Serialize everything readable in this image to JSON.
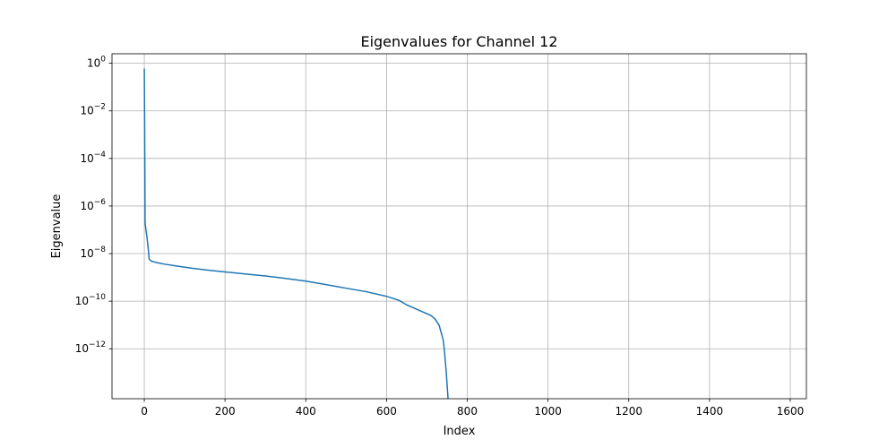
{
  "chart_data": {
    "type": "line",
    "title": "Eigenvalues for Channel 12",
    "xlabel": "Index",
    "ylabel": "Eigenvalue",
    "yscale": "log",
    "grid": true,
    "xlim": [
      -80,
      1640
    ],
    "ylim_exp": [
      -14.1,
      0.4
    ],
    "x_ticks": [
      0,
      200,
      400,
      600,
      800,
      1000,
      1200,
      1400,
      1600
    ],
    "y_ticks_exp": [
      0,
      -2,
      -4,
      -6,
      -8,
      -10,
      -12
    ],
    "y_tick_base": "10",
    "line_color": "#1f77b4",
    "series": [
      {
        "x": [
          0,
          1,
          2,
          4,
          6,
          8,
          10,
          12,
          14,
          16,
          20,
          30,
          50,
          80,
          120,
          160,
          200,
          250,
          300,
          350,
          400,
          450,
          500,
          550,
          600,
          630,
          650,
          670,
          690,
          710,
          720,
          730,
          735,
          740,
          743,
          745,
          748,
          750,
          752,
          753,
          754
        ],
        "y": [
          0.6,
          0.001,
          2e-07,
          1e-07,
          6e-08,
          3e-08,
          1.5e-08,
          6e-09,
          5.5e-09,
          5e-09,
          4.7e-09,
          4.2e-09,
          3.6e-09,
          3e-09,
          2.4e-09,
          2e-09,
          1.7e-09,
          1.4e-09,
          1.15e-09,
          9e-10,
          7e-10,
          5e-10,
          3.5e-10,
          2.5e-10,
          1.6e-10,
          1.1e-10,
          7e-11,
          5e-11,
          3.5e-11,
          2.5e-11,
          1.8e-11,
          1e-11,
          5e-12,
          2.5e-12,
          1e-12,
          4e-13,
          1e-13,
          3e-14,
          1e-14,
          3e-15,
          1e-16
        ]
      }
    ]
  }
}
